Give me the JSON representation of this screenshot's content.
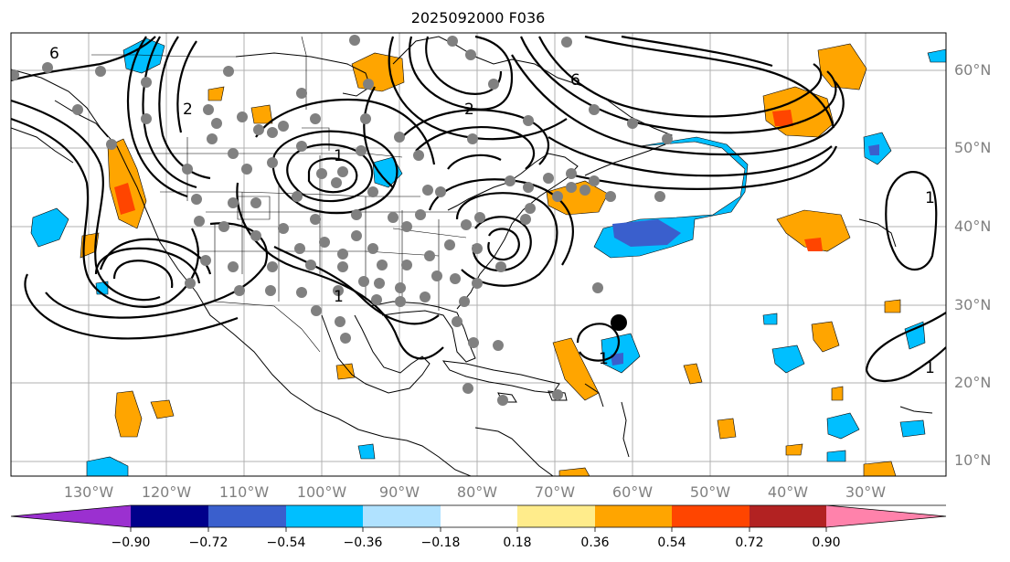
{
  "title": "2025092000 F036",
  "lat_labels": [
    "60°N",
    "50°N",
    "40°N",
    "30°N",
    "20°N",
    "10°N"
  ],
  "lon_labels": [
    "130°W",
    "120°W",
    "110°W",
    "100°W",
    "90°W",
    "80°W",
    "70°W",
    "60°W",
    "50°W",
    "40°W",
    "30°W"
  ],
  "contour_labels": [
    "6",
    "2",
    "6",
    "1",
    "1",
    "2",
    "1",
    "1",
    "1"
  ],
  "colorbar": {
    "ticks": [
      "−0.90",
      "−0.72",
      "−0.54",
      "−0.36",
      "−0.18",
      "0.18",
      "0.36",
      "0.54",
      "0.72",
      "0.90"
    ],
    "colors": [
      "#9b30d0",
      "#00008b",
      "#3a5fcd",
      "#00bfff",
      "#b0e2ff",
      "#ffffff",
      "#ffec8b",
      "#ffa500",
      "#ff4500",
      "#b22222",
      "#ff82ab"
    ]
  },
  "colors": {
    "land_outline": "#000000",
    "grid": "#b0b0b0",
    "station_marker": "#808080",
    "storm_marker": "#000000"
  }
}
